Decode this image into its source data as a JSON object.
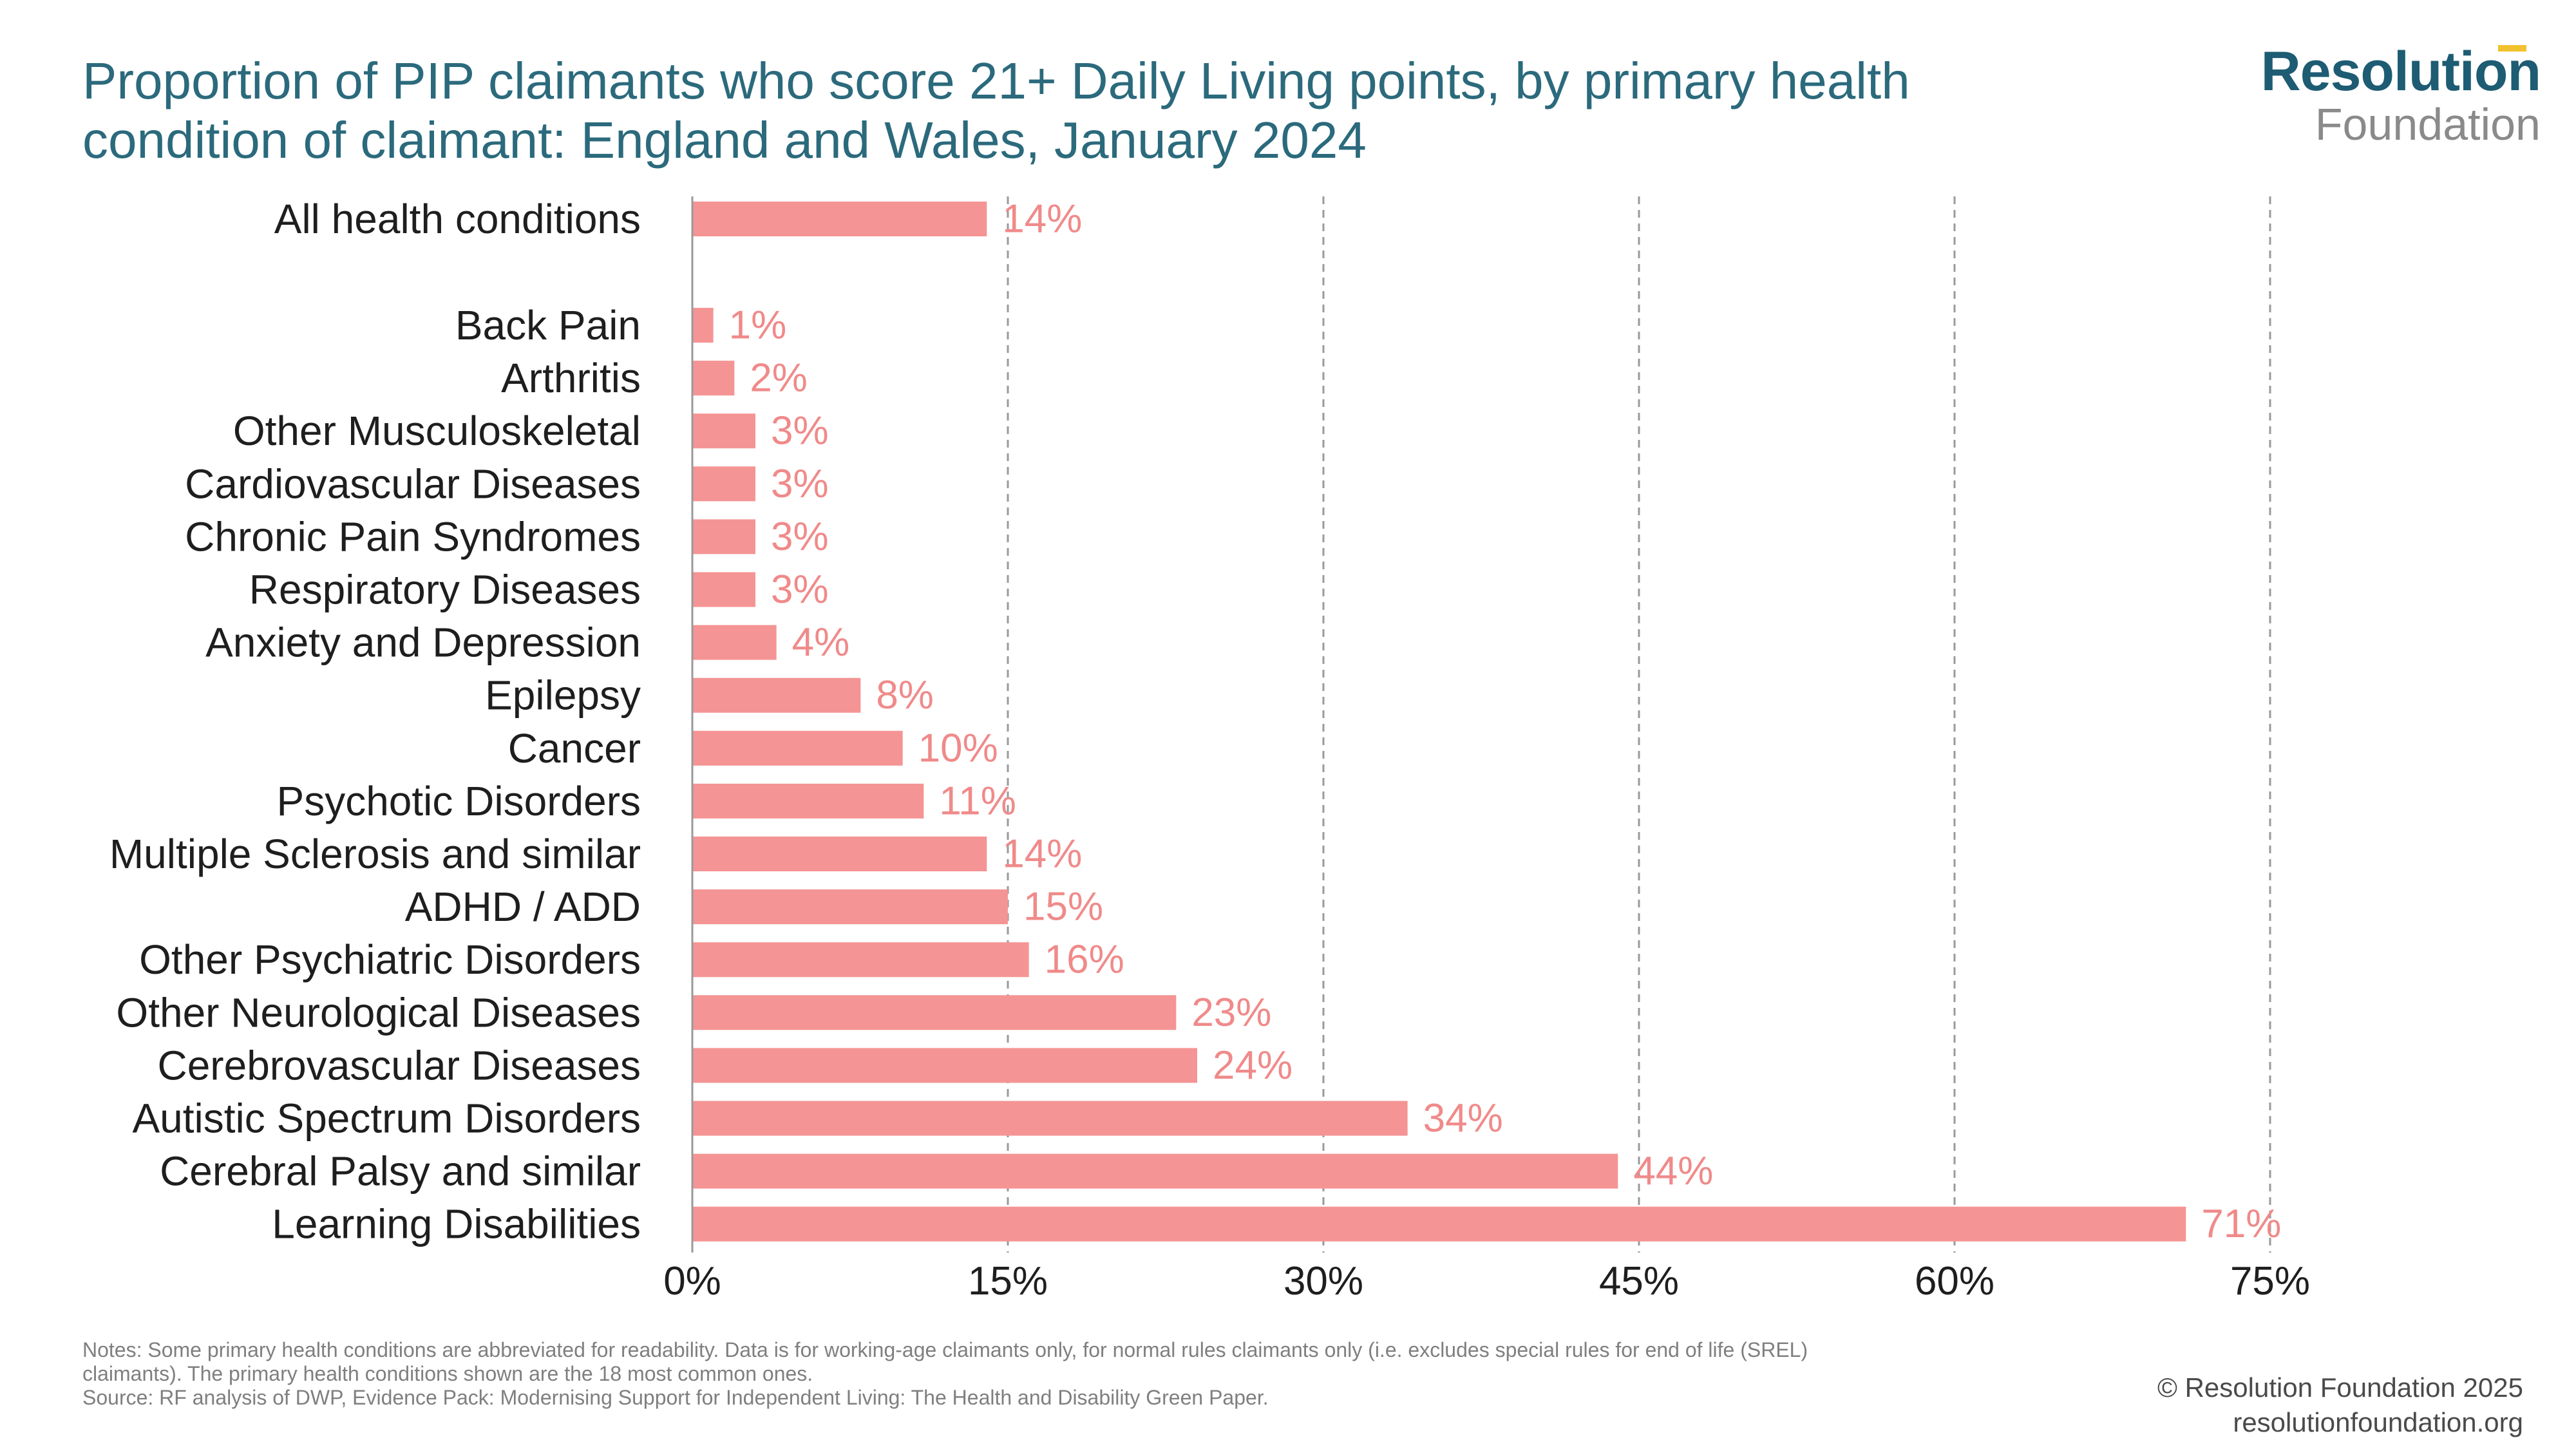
{
  "title_line1": "Proportion of PIP claimants who score 21+ Daily Living points, by primary health",
  "title_line2": "condition of claimant: England and Wales, January 2024",
  "logo": {
    "main": "Resolution",
    "sub": "Foundation"
  },
  "colors": {
    "bar": "#f59494",
    "value_label": "#f08a8a",
    "title": "#2b6a7c",
    "gridline": "#9a9a9a",
    "axis": "#999999",
    "logo_accent": "#f2c12e"
  },
  "chart_data": {
    "type": "bar",
    "orientation": "horizontal",
    "categories": [
      "All health conditions",
      "Back Pain",
      "Arthritis",
      "Other Musculoskeletal",
      "Cardiovascular Diseases",
      "Chronic Pain Syndromes",
      "Respiratory Diseases",
      "Anxiety and Depression",
      "Epilepsy",
      "Cancer",
      "Psychotic Disorders",
      "Multiple Sclerosis and similar",
      "ADHD / ADD",
      "Other Psychiatric Disorders",
      "Other Neurological Diseases",
      "Cerebrovascular Diseases",
      "Autistic Spectrum Disorders",
      "Cerebral Palsy and similar",
      "Learning Disabilities"
    ],
    "values": [
      14,
      1,
      2,
      3,
      3,
      3,
      3,
      4,
      8,
      10,
      11,
      14,
      15,
      16,
      23,
      24,
      34,
      44,
      71
    ],
    "value_labels": [
      "14%",
      "1%",
      "2%",
      "3%",
      "3%",
      "3%",
      "3%",
      "4%",
      "8%",
      "10%",
      "11%",
      "14%",
      "15%",
      "16%",
      "23%",
      "24%",
      "34%",
      "44%",
      "71%"
    ],
    "xlim": [
      0,
      75
    ],
    "xticks": [
      0,
      15,
      30,
      45,
      60,
      75
    ],
    "xtick_labels": [
      "0%",
      "15%",
      "30%",
      "45%",
      "60%",
      "75%"
    ],
    "grid": "vertical dashed",
    "legend": "none"
  },
  "notes": {
    "line1": "Notes: Some primary health conditions are abbreviated for readability. Data is for working-age claimants only, for normal rules claimants only (i.e. excludes special rules for end of life (SREL)",
    "line2": "claimants). The primary health conditions shown are the 18 most common ones.",
    "line3": "Source: RF analysis of DWP, Evidence Pack: Modernising Support for Independent Living: The Health and Disability Green Paper."
  },
  "copyright": {
    "line1": "© Resolution Foundation 2025",
    "line2": "resolutionfoundation.org"
  }
}
